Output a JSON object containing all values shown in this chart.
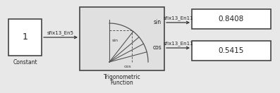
{
  "bg_color": "#e8e8e8",
  "block_edge": "#444444",
  "block_fill": "#ffffff",
  "trig_fill": "#e0e0e0",
  "constant_value": "1",
  "constant_label": "Constant",
  "sin_out_value": "0.8408",
  "cos_out_value": "0.5415",
  "trig_label_top": "Trigonometric",
  "trig_label_bot": "Function",
  "signal_in_label": "sfix13_En5",
  "signal_sin_label": "sfix13_En11",
  "signal_cos_label": "sfix13_En11",
  "wire_color": "#333333",
  "label_color": "#222222",
  "fig_w": 3.97,
  "fig_h": 1.32,
  "dpi": 100
}
